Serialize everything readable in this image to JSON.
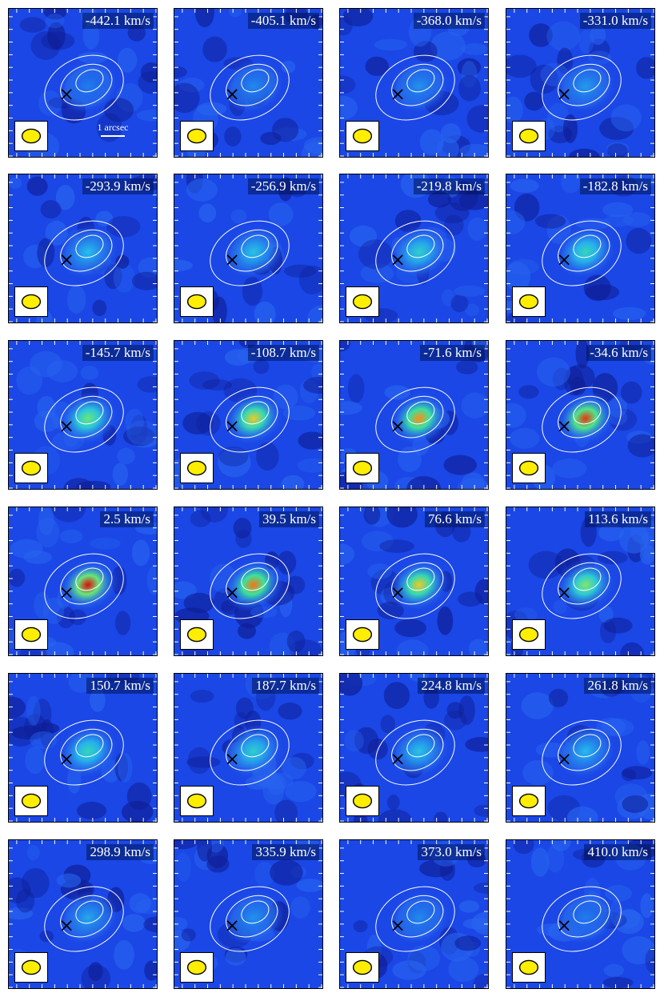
{
  "panels": [
    {
      "velocity": "-442.1 km/s",
      "peak": 0.1
    },
    {
      "velocity": "-405.1 km/s",
      "peak": 0.13
    },
    {
      "velocity": "-368.0 km/s",
      "peak": 0.15
    },
    {
      "velocity": "-331.0 km/s",
      "peak": 0.17
    },
    {
      "velocity": "-293.9 km/s",
      "peak": 0.25
    },
    {
      "velocity": "-256.9 km/s",
      "peak": 0.28
    },
    {
      "velocity": "-219.8 km/s",
      "peak": 0.35
    },
    {
      "velocity": "-182.8 km/s",
      "peak": 0.4
    },
    {
      "velocity": "-145.7 km/s",
      "peak": 0.55
    },
    {
      "velocity": "-108.7 km/s",
      "peak": 0.75
    },
    {
      "velocity": "-71.6 km/s",
      "peak": 0.85
    },
    {
      "velocity": "-34.6 km/s",
      "peak": 0.95
    },
    {
      "velocity": "2.5 km/s",
      "peak": 1.0
    },
    {
      "velocity": "39.5 km/s",
      "peak": 0.88
    },
    {
      "velocity": "76.6 km/s",
      "peak": 0.75
    },
    {
      "velocity": "113.6 km/s",
      "peak": 0.58
    },
    {
      "velocity": "150.7 km/s",
      "peak": 0.4
    },
    {
      "velocity": "187.7 km/s",
      "peak": 0.35
    },
    {
      "velocity": "224.8 km/s",
      "peak": 0.28
    },
    {
      "velocity": "261.8 km/s",
      "peak": 0.24
    },
    {
      "velocity": "298.9 km/s",
      "peak": 0.2
    },
    {
      "velocity": "335.9 km/s",
      "peak": 0.15
    },
    {
      "velocity": "373.0 km/s",
      "peak": 0.13
    },
    {
      "velocity": "410.0 km/s",
      "peak": 0.1
    }
  ],
  "scale_label": "1 arcsec",
  "colors": {
    "background": "#1a47e6",
    "contour": "#ffffff",
    "beam": "#ffee00",
    "marker": "#000000"
  },
  "icons": {
    "beam": "beam-ellipse-icon",
    "marker": "cross-marker-icon"
  }
}
